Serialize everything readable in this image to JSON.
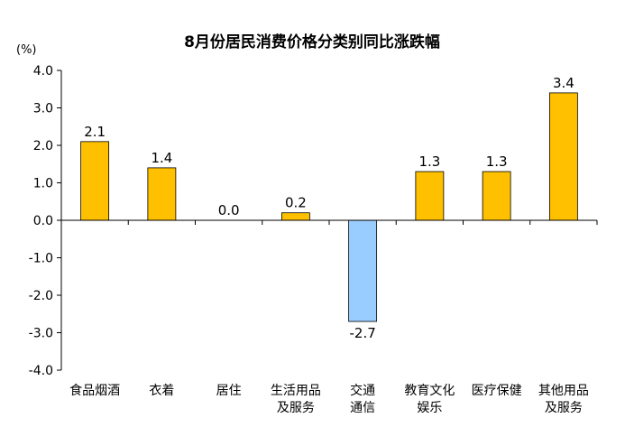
{
  "chart_data": {
    "type": "bar",
    "title": "8月份居民消费价格分类别同比涨跌幅",
    "unit_label": "(%)",
    "categories": [
      [
        "食品烟酒"
      ],
      [
        "衣着"
      ],
      [
        "居住"
      ],
      [
        "生活用品",
        "及服务"
      ],
      [
        "交通",
        "通信"
      ],
      [
        "教育文化",
        "娱乐"
      ],
      [
        "医疗保健"
      ],
      [
        "其他用品",
        "及服务"
      ]
    ],
    "values": [
      2.1,
      1.4,
      0.0,
      0.2,
      -2.7,
      1.3,
      1.3,
      3.4
    ],
    "value_labels": [
      "2.1",
      "1.4",
      "0.0",
      "0.2",
      "-2.7",
      "1.3",
      "1.3",
      "3.4"
    ],
    "ylim": [
      -4.0,
      4.0
    ],
    "yticks": [
      4.0,
      3.0,
      2.0,
      1.0,
      0.0,
      -1.0,
      -2.0,
      -3.0,
      -4.0
    ],
    "ytick_labels": [
      "4.0",
      "3.0",
      "2.0",
      "1.0",
      "0.0",
      "-1.0",
      "-2.0",
      "-3.0",
      "-4.0"
    ],
    "grid": false,
    "colors": {
      "positive": "#FFC000",
      "negative": "#99CCFF",
      "bar_edge": "#000000",
      "axis": "#000000"
    }
  }
}
